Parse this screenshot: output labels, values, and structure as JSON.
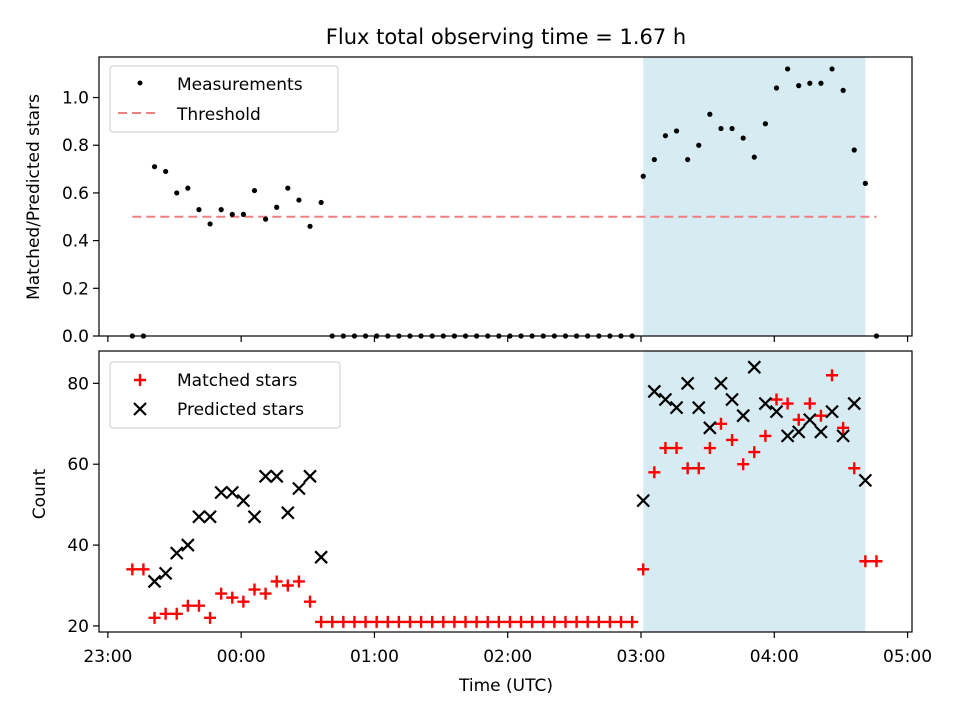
{
  "figure": {
    "title": "Flux total observing time = 1.67 h"
  },
  "chart_data": [
    {
      "type": "scatter",
      "ylabel": "Matched/Predicted stars",
      "xlabel": "",
      "ylim": [
        0,
        1.17
      ],
      "xlim": [
        "22:56",
        "05:02"
      ],
      "yticks": [
        0.0,
        0.2,
        0.4,
        0.6,
        0.8,
        1.0
      ],
      "ytick_labels": [
        "0.0",
        "0.2",
        "0.4",
        "0.6",
        "0.8",
        "1.0"
      ],
      "highlight_span": {
        "x_start": "03:01",
        "x_end": "04:41",
        "color": "#add8e6"
      },
      "threshold": {
        "name": "Threshold",
        "y": 0.5,
        "x_start": "23:11",
        "x_end": "04:46",
        "color": "#f08080"
      },
      "legend_location": "upper-left",
      "legend": [
        {
          "label": "Measurements",
          "marker": "dot",
          "color": "#000000"
        },
        {
          "label": "Threshold",
          "marker": "dashed-line",
          "color": "#f08080"
        }
      ],
      "series": [
        {
          "name": "Measurements",
          "color": "#000000",
          "x": [
            "23:11",
            "23:16",
            "23:21",
            "23:26",
            "23:31",
            "23:36",
            "23:41",
            "23:46",
            "23:51",
            "23:56",
            "00:01",
            "00:06",
            "00:11",
            "00:16",
            "00:21",
            "00:26",
            "00:31",
            "00:36",
            "00:41",
            "00:46",
            "00:51",
            "00:56",
            "01:01",
            "01:06",
            "01:11",
            "01:16",
            "01:21",
            "01:26",
            "01:31",
            "01:36",
            "01:41",
            "01:46",
            "01:51",
            "01:56",
            "02:01",
            "02:06",
            "02:11",
            "02:16",
            "02:21",
            "02:26",
            "02:31",
            "02:36",
            "02:41",
            "02:46",
            "02:51",
            "02:56",
            "03:01",
            "03:06",
            "03:11",
            "03:16",
            "03:21",
            "03:26",
            "03:31",
            "03:36",
            "03:41",
            "03:46",
            "03:51",
            "03:56",
            "04:01",
            "04:06",
            "04:11",
            "04:16",
            "04:21",
            "04:26",
            "04:31",
            "04:36",
            "04:41",
            "04:46"
          ],
          "y": [
            0.0,
            0.0,
            0.71,
            0.69,
            0.6,
            0.62,
            0.53,
            0.47,
            0.53,
            0.51,
            0.51,
            0.61,
            0.49,
            0.54,
            0.62,
            0.57,
            0.46,
            0.56,
            0.0,
            0.0,
            0.0,
            0.0,
            0.0,
            0.0,
            0.0,
            0.0,
            0.0,
            0.0,
            0.0,
            0.0,
            0.0,
            0.0,
            0.0,
            0.0,
            0.0,
            0.0,
            0.0,
            0.0,
            0.0,
            0.0,
            0.0,
            0.0,
            0.0,
            0.0,
            0.0,
            0.0,
            0.67,
            0.74,
            0.84,
            0.86,
            0.74,
            0.8,
            0.93,
            0.87,
            0.87,
            0.83,
            0.75,
            0.89,
            1.04,
            1.12,
            1.05,
            1.06,
            1.06,
            1.12,
            1.03,
            0.78,
            0.64,
            0.0
          ]
        }
      ]
    },
    {
      "type": "scatter",
      "ylabel": "Count",
      "xlabel": "Time (UTC)",
      "ylim": [
        18.5,
        88
      ],
      "xlim": [
        "22:56",
        "05:02"
      ],
      "yticks": [
        20,
        40,
        60,
        80
      ],
      "ytick_labels": [
        "20",
        "40",
        "60",
        "80"
      ],
      "xticks": [
        "23:00",
        "00:00",
        "01:00",
        "02:00",
        "03:00",
        "04:00",
        "05:00"
      ],
      "xtick_labels": [
        "23:00",
        "00:00",
        "01:00",
        "02:00",
        "03:00",
        "04:00",
        "05:00"
      ],
      "highlight_span": {
        "x_start": "03:01",
        "x_end": "04:41",
        "color": "#add8e6"
      },
      "legend_location": "upper-left",
      "legend": [
        {
          "label": "Matched stars",
          "marker": "plus",
          "color": "#ff0000"
        },
        {
          "label": "Predicted stars",
          "marker": "x",
          "color": "#000000"
        }
      ],
      "series": [
        {
          "name": "Matched stars",
          "color": "#ff0000",
          "x": [
            "23:11",
            "23:16",
            "23:21",
            "23:26",
            "23:31",
            "23:36",
            "23:41",
            "23:46",
            "23:51",
            "23:56",
            "00:01",
            "00:06",
            "00:11",
            "00:16",
            "00:21",
            "00:26",
            "00:31",
            "00:36",
            "00:41",
            "00:46",
            "00:51",
            "00:56",
            "01:01",
            "01:06",
            "01:11",
            "01:16",
            "01:21",
            "01:26",
            "01:31",
            "01:36",
            "01:41",
            "01:46",
            "01:51",
            "01:56",
            "02:01",
            "02:06",
            "02:11",
            "02:16",
            "02:21",
            "02:26",
            "02:31",
            "02:36",
            "02:41",
            "02:46",
            "02:51",
            "02:56",
            "03:01",
            "03:06",
            "03:11",
            "03:16",
            "03:21",
            "03:26",
            "03:31",
            "03:36",
            "03:41",
            "03:46",
            "03:51",
            "03:56",
            "04:01",
            "04:06",
            "04:11",
            "04:16",
            "04:21",
            "04:26",
            "04:31",
            "04:36",
            "04:41",
            "04:46"
          ],
          "y": [
            34,
            34,
            22,
            23,
            23,
            25,
            25,
            22,
            28,
            27,
            26,
            29,
            28,
            31,
            30,
            31,
            26,
            21,
            21,
            21,
            21,
            21,
            21,
            21,
            21,
            21,
            21,
            21,
            21,
            21,
            21,
            21,
            21,
            21,
            21,
            21,
            21,
            21,
            21,
            21,
            21,
            21,
            21,
            21,
            21,
            21,
            34,
            58,
            64,
            64,
            59,
            59,
            64,
            70,
            66,
            60,
            63,
            67,
            76,
            75,
            71,
            75,
            72,
            82,
            69,
            59,
            36,
            36
          ]
        },
        {
          "name": "Predicted stars",
          "color": "#000000",
          "x": [
            "23:21",
            "23:26",
            "23:31",
            "23:36",
            "23:41",
            "23:46",
            "23:51",
            "23:56",
            "00:01",
            "00:06",
            "00:11",
            "00:16",
            "00:21",
            "00:26",
            "00:31",
            "00:36",
            "00:41",
            "03:01",
            "03:06",
            "03:11",
            "03:16",
            "03:21",
            "03:26",
            "03:31",
            "03:36",
            "03:41",
            "03:46",
            "03:51",
            "03:56",
            "04:01",
            "04:06",
            "04:11",
            "04:16",
            "04:21",
            "04:26",
            "04:31",
            "04:36",
            "04:41"
          ],
          "y": [
            31,
            33,
            38,
            40,
            47,
            47,
            53,
            53,
            51,
            47,
            57,
            57,
            48,
            54,
            57,
            37,
            null,
            51,
            78,
            76,
            74,
            80,
            74,
            69,
            80,
            76,
            72,
            84,
            75,
            73,
            67,
            68,
            71,
            68,
            73,
            67,
            75,
            56
          ]
        }
      ]
    }
  ]
}
